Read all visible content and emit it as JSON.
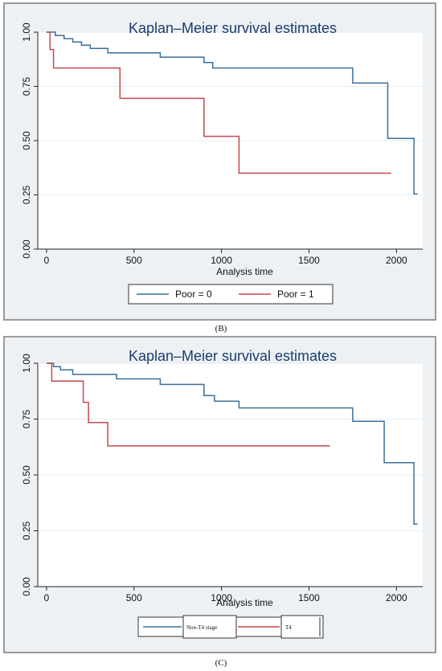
{
  "chart_data": [
    {
      "type": "line",
      "title": "Kaplan–Meier survival estimates",
      "xlabel": "Analysis time",
      "ylabel": "",
      "xlim": [
        0,
        2150
      ],
      "ylim": [
        0,
        1
      ],
      "xticks": [
        "0",
        "500",
        "1000",
        "1500",
        "2000"
      ],
      "yticks": [
        "0.00",
        "0.25",
        "0.50",
        "0.75",
        "1.00"
      ],
      "grid": true,
      "legend_position": "bottom",
      "caption": "(B)",
      "series": [
        {
          "name": "Poor = 0",
          "color": "#3b6e99",
          "x": [
            0,
            50,
            100,
            150,
            200,
            250,
            350,
            650,
            900,
            950,
            1750,
            1950,
            2100,
            2120
          ],
          "y": [
            1.0,
            0.985,
            0.97,
            0.955,
            0.94,
            0.925,
            0.905,
            0.885,
            0.86,
            0.835,
            0.765,
            0.51,
            0.255,
            0.255
          ]
        },
        {
          "name": "Poor = 1",
          "color": "#c8474d",
          "x": [
            0,
            20,
            40,
            420,
            900,
            1100,
            1970
          ],
          "y": [
            1.0,
            0.92,
            0.835,
            0.695,
            0.52,
            0.35,
            0.35
          ]
        }
      ]
    },
    {
      "type": "line",
      "title": "Kaplan–Meier survival estimates",
      "xlabel": "Analysis time",
      "ylabel": "",
      "xlim": [
        0,
        2150
      ],
      "ylim": [
        0,
        1
      ],
      "xticks": [
        "0",
        "500",
        "1000",
        "1500",
        "2000"
      ],
      "yticks": [
        "0.00",
        "0.25",
        "0.50",
        "0.75",
        "1.00"
      ],
      "grid": true,
      "legend_position": "bottom",
      "caption": "(C)",
      "series": [
        {
          "name": "Non-T4 stage",
          "color": "#3b6e99",
          "x": [
            0,
            40,
            80,
            150,
            400,
            650,
            900,
            960,
            1100,
            1750,
            1930,
            2100,
            2120
          ],
          "y": [
            1.0,
            0.985,
            0.97,
            0.95,
            0.93,
            0.905,
            0.855,
            0.83,
            0.8,
            0.74,
            0.555,
            0.28,
            0.28
          ]
        },
        {
          "name": "T4",
          "color": "#c8474d",
          "x": [
            0,
            30,
            210,
            240,
            350,
            1620
          ],
          "y": [
            1.0,
            0.92,
            0.825,
            0.735,
            0.63,
            0.63
          ]
        }
      ]
    }
  ]
}
